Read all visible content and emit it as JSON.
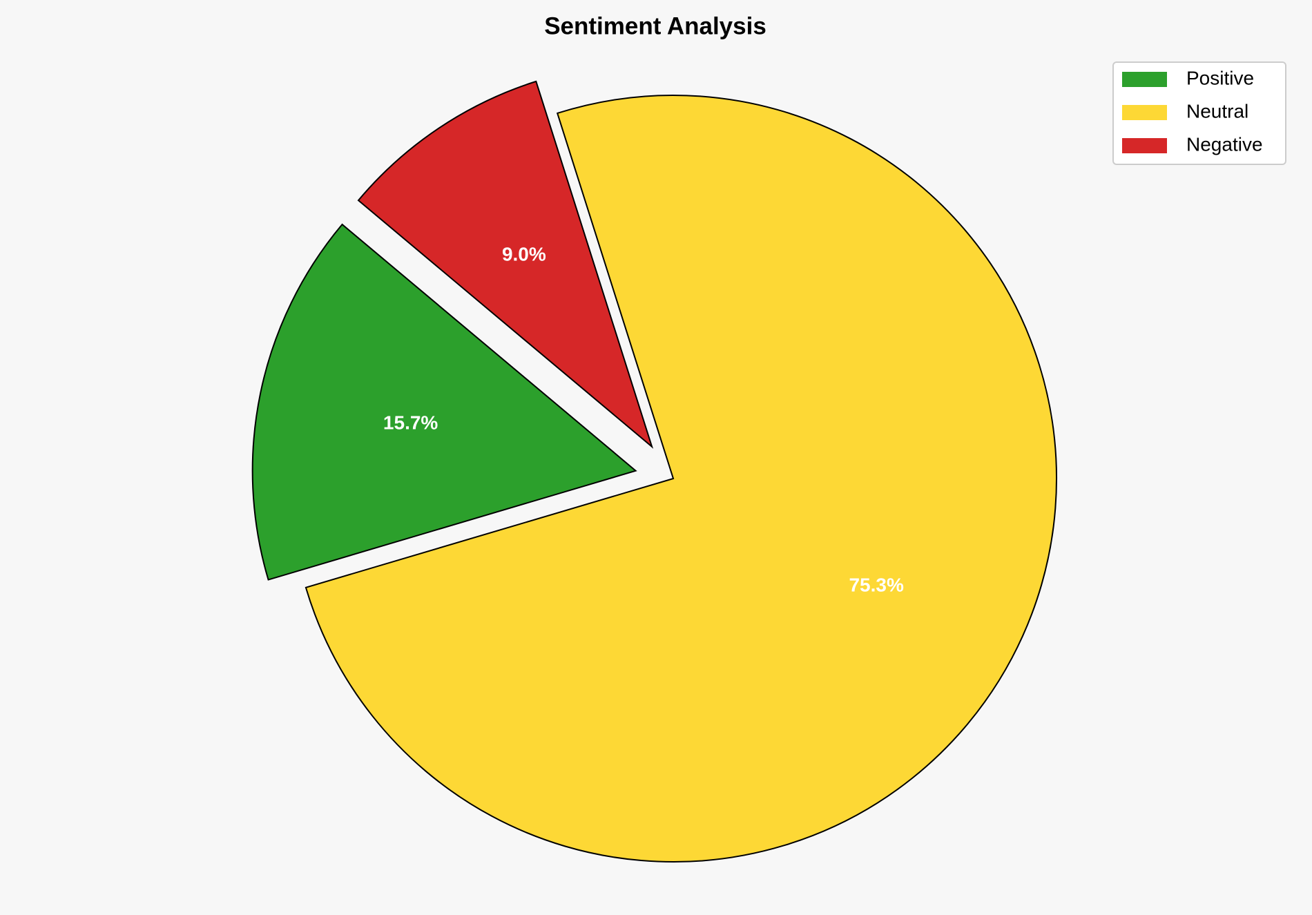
{
  "chart_data": {
    "type": "pie",
    "title": "Sentiment Analysis",
    "categories": [
      "Positive",
      "Neutral",
      "Negative"
    ],
    "values": [
      15.7,
      75.3,
      9.0
    ],
    "value_labels": [
      "15.7%",
      "75.3%",
      "9.0%"
    ],
    "colors": [
      "#2ca02c",
      "#fdd835",
      "#d62728"
    ],
    "legend": "upper right"
  }
}
